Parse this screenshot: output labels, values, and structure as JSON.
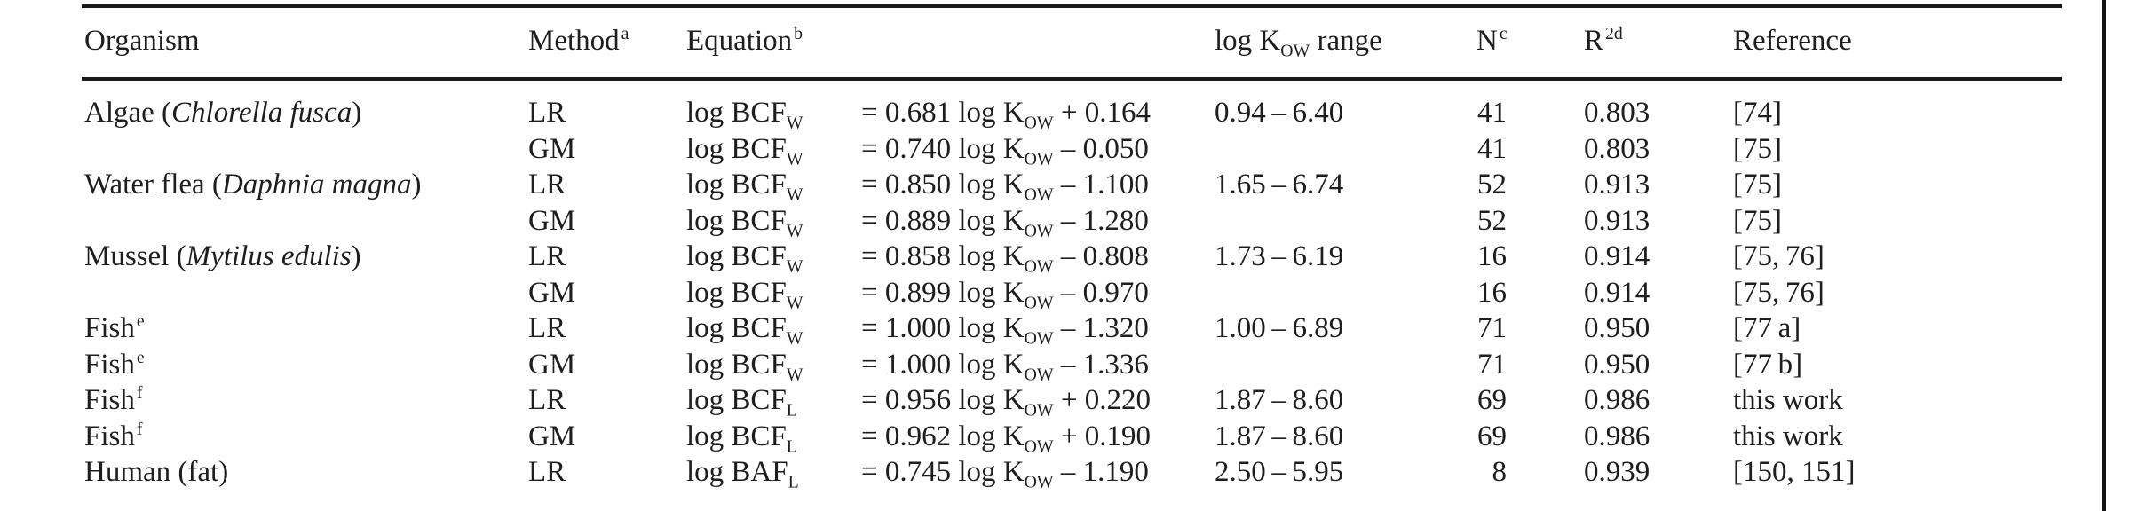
{
  "page": {
    "background": "#ffffff",
    "text_color": "#1e1e1e",
    "rule_color": "#1a1a1a",
    "page_edge_line_color": "#141414"
  },
  "table": {
    "columns": [
      {
        "id": "organism",
        "text": "Organism"
      },
      {
        "id": "method",
        "text": "Method",
        "sup": "a"
      },
      {
        "id": "equation",
        "text": "Equation",
        "sup": "b"
      },
      {
        "id": "kow-range",
        "text": "log K",
        "sub": "OW",
        "post": " range"
      },
      {
        "id": "n",
        "text": "N",
        "sup": "c"
      },
      {
        "id": "r-squared",
        "text": "R",
        "sup": "2d"
      },
      {
        "id": "reference",
        "text": "Reference"
      }
    ],
    "rows": [
      {
        "organism": {
          "pre": "Algae (",
          "italic": "Chlorella fusca",
          "post": ")"
        },
        "method": "LR",
        "eq": {
          "lhs": "log BCF",
          "lhs_sub": "W",
          "mid": "= 0.681 log K",
          "k_sub": "OW",
          "tail": "+ 0.164"
        },
        "range": "0.94 – 6.40",
        "n": "41",
        "r2": "0.803",
        "ref": "[74]"
      },
      {
        "organism": {},
        "method": "GM",
        "eq": {
          "lhs": "log BCF",
          "lhs_sub": "W",
          "mid": "= 0.740 log K",
          "k_sub": "OW",
          "tail": "– 0.050"
        },
        "range": "",
        "n": "41",
        "r2": "0.803",
        "ref": "[75]"
      },
      {
        "organism": {
          "pre": "Water flea (",
          "italic": "Daphnia magna",
          "post": ")"
        },
        "method": "LR",
        "eq": {
          "lhs": "log BCF",
          "lhs_sub": "W",
          "mid": "= 0.850 log K",
          "k_sub": "OW",
          "tail": "– 1.100"
        },
        "range": "1.65 – 6.74",
        "n": "52",
        "r2": "0.913",
        "ref": "[75]"
      },
      {
        "organism": {},
        "method": "GM",
        "eq": {
          "lhs": "log BCF",
          "lhs_sub": "W",
          "mid": "= 0.889 log K",
          "k_sub": "OW",
          "tail": "– 1.280"
        },
        "range": "",
        "n": "52",
        "r2": "0.913",
        "ref": "[75]"
      },
      {
        "organism": {
          "pre": "Mussel (",
          "italic": "Mytilus edulis",
          "post": ")"
        },
        "method": "LR",
        "eq": {
          "lhs": "log BCF",
          "lhs_sub": "W",
          "mid": "= 0.858 log K",
          "k_sub": "OW",
          "tail": "– 0.808"
        },
        "range": "1.73 – 6.19",
        "n": "16",
        "r2": "0.914",
        "ref": "[75, 76]"
      },
      {
        "organism": {},
        "method": "GM",
        "eq": {
          "lhs": "log BCF",
          "lhs_sub": "W",
          "mid": "= 0.899 log K",
          "k_sub": "OW",
          "tail": "– 0.970"
        },
        "range": "",
        "n": "16",
        "r2": "0.914",
        "ref": "[75, 76]"
      },
      {
        "organism": {
          "pre": "Fish",
          "sup": "e"
        },
        "method": "LR",
        "eq": {
          "lhs": "log BCF",
          "lhs_sub": "W",
          "mid": "= 1.000 log K",
          "k_sub": "OW",
          "tail": "– 1.320"
        },
        "range": "1.00 – 6.89",
        "n": "71",
        "r2": "0.950",
        "ref": "[77 a]"
      },
      {
        "organism": {
          "pre": "Fish",
          "sup": "e"
        },
        "method": "GM",
        "eq": {
          "lhs": "log BCF",
          "lhs_sub": "W",
          "mid": "= 1.000 log K",
          "k_sub": "OW",
          "tail": "– 1.336"
        },
        "range": "",
        "n": "71",
        "r2": "0.950",
        "ref": "[77 b]"
      },
      {
        "organism": {
          "pre": "Fish",
          "sup": "f"
        },
        "method": "LR",
        "eq": {
          "lhs": "log BCF",
          "lhs_sub": "L",
          "mid": "= 0.956 log K",
          "k_sub": "OW",
          "tail": "+ 0.220"
        },
        "range": "1.87 – 8.60",
        "n": "69",
        "r2": "0.986",
        "ref": "this work"
      },
      {
        "organism": {
          "pre": "Fish",
          "sup": "f"
        },
        "method": "GM",
        "eq": {
          "lhs": "log BCF",
          "lhs_sub": "L",
          "mid": "= 0.962 log K",
          "k_sub": "OW",
          "tail": "+ 0.190"
        },
        "range": "1.87 – 8.60",
        "n": "69",
        "r2": "0.986",
        "ref": "this work"
      },
      {
        "organism": {
          "pre": "Human (fat)"
        },
        "method": "LR",
        "eq": {
          "lhs": "log BAF",
          "lhs_sub": "L",
          "mid": "= 0.745 log K",
          "k_sub": "OW",
          "tail": "– 1.190"
        },
        "range": "2.50 – 5.95",
        "n": "8",
        "r2": "0.939",
        "ref": "[150, 151]"
      }
    ]
  }
}
